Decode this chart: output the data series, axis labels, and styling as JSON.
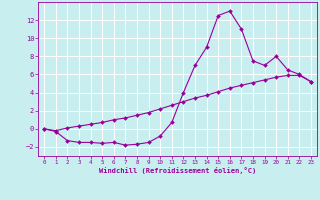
{
  "xlabel": "Windchill (Refroidissement éolien,°C)",
  "bg_color": "#c8eef0",
  "line_color": "#990099",
  "xlim": [
    -0.5,
    23.5
  ],
  "ylim": [
    -3.0,
    14.0
  ],
  "xticks": [
    0,
    1,
    2,
    3,
    4,
    5,
    6,
    7,
    8,
    9,
    10,
    11,
    12,
    13,
    14,
    15,
    16,
    17,
    18,
    19,
    20,
    21,
    22,
    23
  ],
  "yticks": [
    -2,
    0,
    2,
    4,
    6,
    8,
    10,
    12
  ],
  "line1_x": [
    0,
    1,
    2,
    3,
    4,
    5,
    6,
    7,
    8,
    9,
    10,
    11,
    12,
    13,
    14,
    15,
    16,
    17,
    18,
    19,
    20,
    21,
    22,
    23
  ],
  "line1_y": [
    0,
    -0.3,
    -1.3,
    -1.5,
    -1.5,
    -1.6,
    -1.5,
    -1.8,
    -1.7,
    -1.5,
    -0.8,
    0.7,
    4.0,
    7.0,
    9.0,
    12.5,
    13.0,
    11.0,
    7.5,
    7.0,
    8.0,
    6.5,
    6.0,
    5.2
  ],
  "line2_x": [
    0,
    1,
    2,
    3,
    4,
    5,
    6,
    7,
    8,
    9,
    10,
    11,
    12,
    13,
    14,
    15,
    16,
    17,
    18,
    19,
    20,
    21,
    22,
    23
  ],
  "line2_y": [
    0,
    -0.2,
    0.1,
    0.3,
    0.5,
    0.7,
    1.0,
    1.2,
    1.5,
    1.8,
    2.2,
    2.6,
    3.0,
    3.4,
    3.7,
    4.1,
    4.5,
    4.8,
    5.1,
    5.4,
    5.7,
    5.9,
    5.9,
    5.2
  ],
  "xlabel_fontsize": 5.0,
  "xtick_fontsize": 4.2,
  "ytick_fontsize": 5.0,
  "linewidth": 0.8,
  "markersize": 2.0
}
